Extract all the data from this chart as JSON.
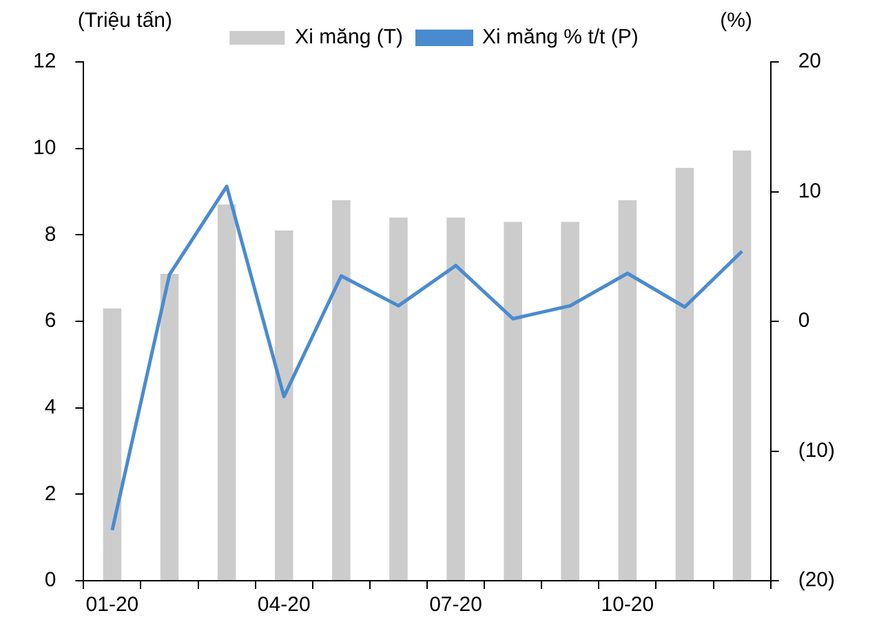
{
  "chart_data": {
    "type": "bar",
    "ylabel": "(Triệu tấn)",
    "y2label": "(%)",
    "categories": [
      "01-20",
      null,
      null,
      "04-20",
      null,
      null,
      "07-20",
      null,
      null,
      "10-20",
      null,
      null
    ],
    "series": [
      {
        "name": "Xi măng (T)",
        "color": "#cccccc",
        "values": [
          6.3,
          7.1,
          8.7,
          8.1,
          8.8,
          8.4,
          8.4,
          8.3,
          8.3,
          8.8,
          9.55,
          9.95
        ]
      },
      {
        "name": "Xi măng % t/t (P)",
        "type": "line",
        "axis": "y2",
        "color": "#4a8bd0",
        "values": [
          -16.1,
          3.6,
          10.4,
          -5.8,
          3.5,
          1.2,
          4.3,
          0.2,
          1.2,
          3.7,
          1.1,
          5.4
        ]
      }
    ],
    "ylim": [
      0,
      12
    ],
    "yticks": [
      0,
      2,
      4,
      6,
      8,
      10,
      12
    ],
    "y2lim": [
      -20,
      20
    ],
    "y2ticks": [
      {
        "value": -20,
        "label": "(20)"
      },
      {
        "value": -10,
        "label": "(10)"
      },
      0,
      10,
      20
    ],
    "grid": false,
    "legend": "top",
    "marker": "none",
    "line_style": "solid"
  }
}
